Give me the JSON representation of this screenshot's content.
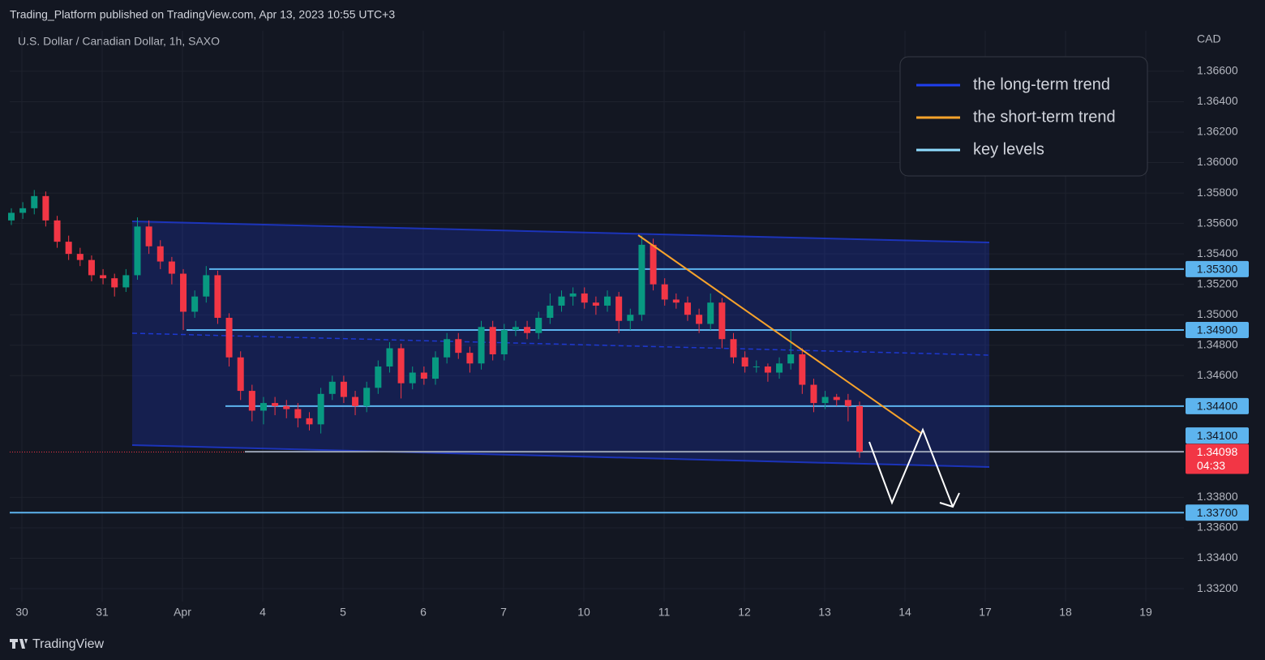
{
  "header": "Trading_Platform published on TradingView.com, Apr 13, 2023 10:55 UTC+3",
  "footer": "TradingView",
  "chart_data": {
    "type": "candlestick",
    "title": "U.S. Dollar / Canadian Dollar, 1h, SAXO",
    "y_axis_label": "CAD",
    "categories": [
      "30",
      "31",
      "Apr",
      "4",
      "5",
      "6",
      "7",
      "10",
      "11",
      "12",
      "13",
      "14",
      "17",
      "18",
      "19"
    ],
    "ylim": [
      1.33115,
      1.36866
    ],
    "yticks": [
      {
        "value": 1.366,
        "label": "1.36600"
      },
      {
        "value": 1.364,
        "label": "1.36400"
      },
      {
        "value": 1.362,
        "label": "1.36200"
      },
      {
        "value": 1.36,
        "label": "1.36000"
      },
      {
        "value": 1.358,
        "label": "1.35800"
      },
      {
        "value": 1.356,
        "label": "1.35600"
      },
      {
        "value": 1.354,
        "label": "1.35400"
      },
      {
        "value": 1.352,
        "label": "1.35200"
      },
      {
        "value": 1.35,
        "label": "1.35000"
      },
      {
        "value": 1.348,
        "label": "1.34800"
      },
      {
        "value": 1.346,
        "label": "1.34600"
      },
      {
        "value": 1.338,
        "label": "1.33800"
      },
      {
        "value": 1.336,
        "label": "1.33600"
      },
      {
        "value": 1.334,
        "label": "1.33400"
      },
      {
        "value": 1.332,
        "label": "1.33200"
      }
    ],
    "up_color": "#089981",
    "down_color": "#f23645",
    "open": [
      1.3562,
      1.3567,
      1.357,
      1.3578,
      1.3562,
      1.3548,
      1.354,
      1.3536,
      1.3526,
      1.3524,
      1.3518,
      1.3526,
      1.3558,
      1.3545,
      1.3535,
      1.3527,
      1.3502,
      1.3512,
      1.3526,
      1.3498,
      1.3472,
      1.345,
      1.3437,
      1.3442,
      1.344,
      1.3438,
      1.3432,
      1.3428,
      1.3448,
      1.3456,
      1.3446,
      1.344,
      1.3452,
      1.3466,
      1.3478,
      1.3455,
      1.3462,
      1.3458,
      1.3472,
      1.3484,
      1.3475,
      1.3468,
      1.3492,
      1.3474,
      1.349,
      1.3492,
      1.3488,
      1.3498,
      1.3506,
      1.3512,
      1.3514,
      1.3508,
      1.3506,
      1.3512,
      1.3496,
      1.35,
      1.3546,
      1.352,
      1.351,
      1.3508,
      1.35,
      1.3494,
      1.3508,
      1.3484,
      1.3472,
      1.3466,
      1.3466,
      1.3462,
      1.3468,
      1.3474,
      1.3454,
      1.3442,
      1.3446,
      1.3444,
      1.344
    ],
    "high": [
      1.357,
      1.3574,
      1.3582,
      1.3581,
      1.3565,
      1.3552,
      1.3544,
      1.3539,
      1.353,
      1.3527,
      1.353,
      1.3564,
      1.3562,
      1.3549,
      1.3538,
      1.353,
      1.3516,
      1.3532,
      1.3529,
      1.3501,
      1.3476,
      1.3454,
      1.3446,
      1.3446,
      1.3444,
      1.3442,
      1.3436,
      1.3452,
      1.346,
      1.346,
      1.345,
      1.3456,
      1.347,
      1.3482,
      1.3481,
      1.3466,
      1.3466,
      1.3476,
      1.3488,
      1.3488,
      1.3479,
      1.3496,
      1.3496,
      1.3494,
      1.3496,
      1.3496,
      1.3502,
      1.3514,
      1.3516,
      1.3518,
      1.3518,
      1.3512,
      1.3516,
      1.3515,
      1.3504,
      1.3552,
      1.355,
      1.3524,
      1.3514,
      1.3512,
      1.3504,
      1.3514,
      1.3511,
      1.3488,
      1.3476,
      1.347,
      1.3468,
      1.3472,
      1.349,
      1.3478,
      1.3458,
      1.345,
      1.3448,
      1.3448,
      1.3443
    ],
    "low": [
      1.3559,
      1.3563,
      1.3566,
      1.3558,
      1.3544,
      1.3536,
      1.3532,
      1.3522,
      1.352,
      1.3512,
      1.3515,
      1.3523,
      1.354,
      1.353,
      1.352,
      1.349,
      1.3498,
      1.3508,
      1.3494,
      1.3466,
      1.3444,
      1.343,
      1.3428,
      1.3434,
      1.3432,
      1.3426,
      1.3424,
      1.3422,
      1.3444,
      1.3442,
      1.3434,
      1.3436,
      1.3448,
      1.3462,
      1.3445,
      1.3451,
      1.3454,
      1.3454,
      1.3468,
      1.3471,
      1.3462,
      1.3464,
      1.347,
      1.347,
      1.3486,
      1.3484,
      1.3484,
      1.3494,
      1.3502,
      1.3506,
      1.3504,
      1.35,
      1.3502,
      1.3488,
      1.349,
      1.3496,
      1.3516,
      1.3506,
      1.3504,
      1.3496,
      1.3488,
      1.349,
      1.3478,
      1.3468,
      1.3462,
      1.3462,
      1.3456,
      1.3458,
      1.3464,
      1.3448,
      1.3436,
      1.3438,
      1.344,
      1.343,
      1.3406
    ],
    "close": [
      1.3567,
      1.357,
      1.3578,
      1.3562,
      1.3548,
      1.354,
      1.3536,
      1.3526,
      1.3524,
      1.3518,
      1.3526,
      1.3558,
      1.3545,
      1.3535,
      1.3527,
      1.3502,
      1.3512,
      1.3526,
      1.3498,
      1.3472,
      1.345,
      1.3437,
      1.3442,
      1.344,
      1.3438,
      1.3432,
      1.3428,
      1.3448,
      1.3456,
      1.3446,
      1.344,
      1.3452,
      1.3466,
      1.3478,
      1.3455,
      1.3462,
      1.3458,
      1.3472,
      1.3484,
      1.3475,
      1.3468,
      1.3492,
      1.3474,
      1.349,
      1.3492,
      1.3488,
      1.3498,
      1.3506,
      1.3512,
      1.3514,
      1.3508,
      1.3506,
      1.3512,
      1.3496,
      1.35,
      1.3546,
      1.352,
      1.351,
      1.3508,
      1.35,
      1.3494,
      1.3508,
      1.3484,
      1.3472,
      1.3466,
      1.3466,
      1.3462,
      1.3468,
      1.3474,
      1.3454,
      1.3442,
      1.3446,
      1.3444,
      1.344,
      1.341
    ],
    "legend": [
      {
        "name": "the long-term trend",
        "color": "#1f3ff0"
      },
      {
        "name": "the short-term trend",
        "color": "#f7a32b"
      },
      {
        "name": "key levels",
        "color": "#8fdcff"
      }
    ],
    "key_levels": [
      {
        "value": 1.353,
        "label": "1.35300"
      },
      {
        "value": 1.349,
        "label": "1.34900"
      },
      {
        "value": 1.344,
        "label": "1.34400"
      },
      {
        "value": 1.341,
        "label": "1.34100"
      },
      {
        "value": 1.337,
        "label": "1.33700"
      }
    ],
    "key_level_color": "#5db4ee",
    "last_price": {
      "value": 1.34098,
      "label": "1.34098",
      "countdown": "04:33",
      "color": "#f23645"
    }
  }
}
